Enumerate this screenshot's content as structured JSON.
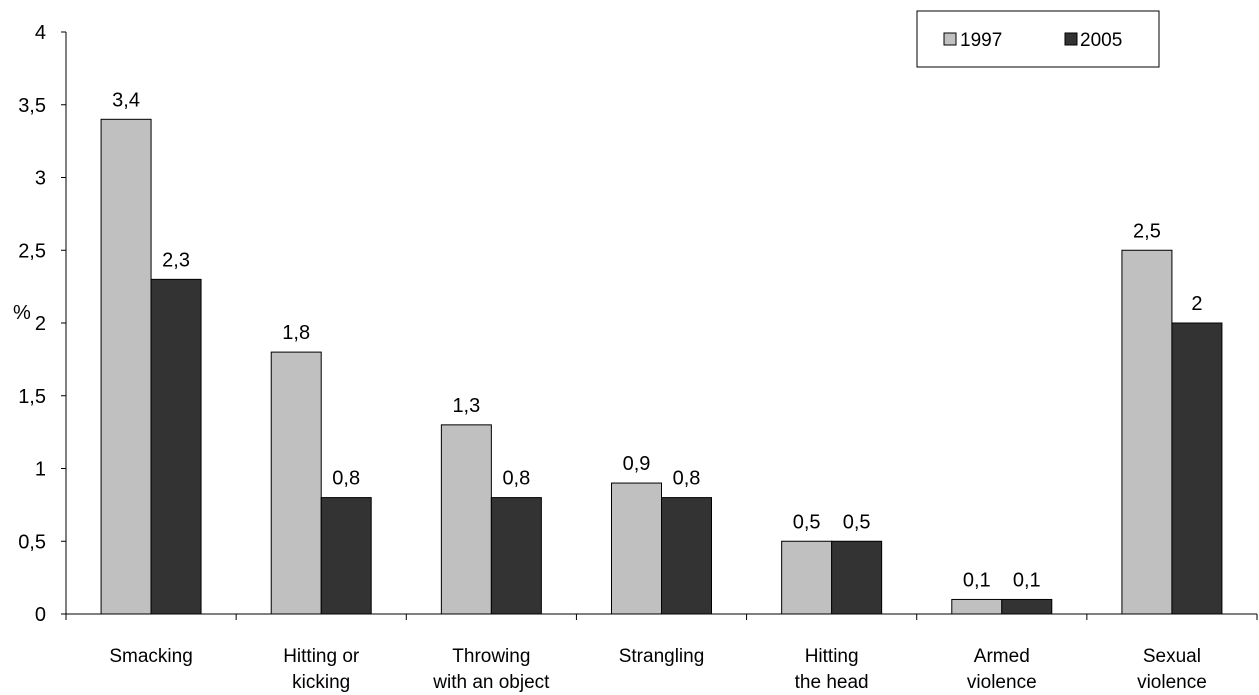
{
  "chart_data": {
    "type": "bar",
    "title": "",
    "xlabel": "",
    "ylabel": "%",
    "ylim": [
      0,
      4
    ],
    "yticks": [
      "0",
      "0,5",
      "1",
      "1,5",
      "2",
      "2,5",
      "3",
      "3,5",
      "4"
    ],
    "ytick_values": [
      0,
      0.5,
      1,
      1.5,
      2,
      2.5,
      3,
      3.5,
      4
    ],
    "grid": false,
    "legend_position": "top-right",
    "categories": [
      [
        "Smacking"
      ],
      [
        "Hitting or",
        "kicking"
      ],
      [
        "Throwing",
        "with an object"
      ],
      [
        "Strangling"
      ],
      [
        "Hitting",
        "the head"
      ],
      [
        "Armed",
        "violence"
      ],
      [
        "Sexual",
        "violence"
      ]
    ],
    "series": [
      {
        "name": "1997",
        "color": "#c0c0c0",
        "values": [
          3.4,
          1.8,
          1.3,
          0.9,
          0.5,
          0.1,
          2.5
        ],
        "labels": [
          "3,4",
          "1,8",
          "1,3",
          "0,9",
          "0,5",
          "0,1",
          "2,5"
        ]
      },
      {
        "name": "2005",
        "color": "#333333",
        "values": [
          2.3,
          0.8,
          0.8,
          0.8,
          0.5,
          0.1,
          2.0
        ],
        "labels": [
          "2,3",
          "0,8",
          "0,8",
          "0,8",
          "0,5",
          "0,1",
          "2"
        ]
      }
    ]
  }
}
